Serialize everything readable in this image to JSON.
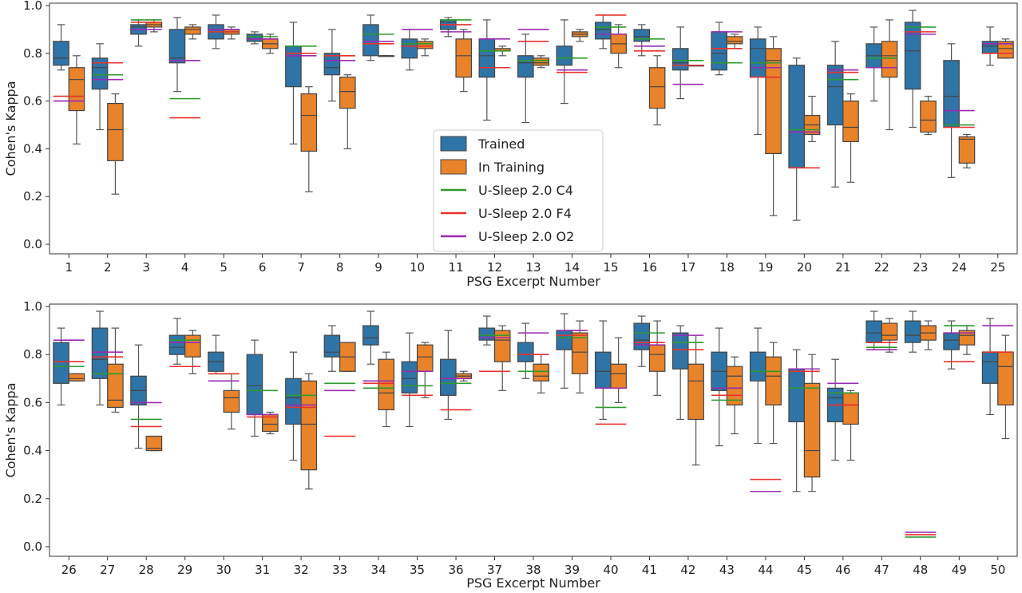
{
  "colors": {
    "trained": "#2f74a6",
    "in_training": "#e8832a",
    "c4": "#2e9a2e",
    "f4": "#e8312f",
    "o2": "#9a2bb0"
  },
  "legend": {
    "placement": "center",
    "trained": "Trained",
    "in_training": "In Training",
    "c4": "U-Sleep 2.0 C4",
    "f4": "U-Sleep 2.0 F4",
    "o2": "U-Sleep 2.0 O2"
  },
  "chart_data": [
    {
      "type": "box",
      "xlabel": "PSG Excerpt Number",
      "ylabel": "Cohen's Kappa",
      "ylim": [
        -0.04,
        1.01
      ],
      "yticks": [
        "0.0",
        "0.2",
        "0.4",
        "0.6",
        "0.8",
        "1.0"
      ],
      "grid": false,
      "categories": [
        "1",
        "2",
        "3",
        "4",
        "5",
        "6",
        "7",
        "8",
        "9",
        "10",
        "11",
        "12",
        "13",
        "14",
        "15",
        "16",
        "17",
        "18",
        "19",
        "20",
        "21",
        "22",
        "23",
        "24",
        "25"
      ],
      "trained": [
        [
          0.73,
          0.75,
          0.78,
          0.85,
          0.92
        ],
        [
          0.48,
          0.65,
          0.74,
          0.78,
          0.84
        ],
        [
          0.83,
          0.88,
          0.91,
          0.92,
          0.94
        ],
        [
          0.64,
          0.76,
          0.78,
          0.9,
          0.95
        ],
        [
          0.82,
          0.86,
          0.9,
          0.92,
          0.96
        ],
        [
          0.84,
          0.85,
          0.87,
          0.88,
          0.89
        ],
        [
          0.42,
          0.66,
          0.8,
          0.83,
          0.93
        ],
        [
          0.6,
          0.71,
          0.74,
          0.8,
          0.9
        ],
        [
          0.77,
          0.79,
          0.85,
          0.92,
          0.96
        ],
        [
          0.73,
          0.78,
          0.83,
          0.86,
          0.9
        ],
        [
          0.87,
          0.9,
          0.93,
          0.94,
          0.95
        ],
        [
          0.52,
          0.7,
          0.79,
          0.86,
          0.94
        ],
        [
          0.51,
          0.7,
          0.76,
          0.79,
          0.88
        ],
        [
          0.59,
          0.75,
          0.78,
          0.83,
          0.94
        ],
        [
          0.82,
          0.86,
          0.9,
          0.93,
          0.96
        ],
        [
          0.79,
          0.85,
          0.87,
          0.9,
          0.92
        ],
        [
          0.61,
          0.73,
          0.76,
          0.82,
          0.91
        ],
        [
          0.71,
          0.73,
          0.8,
          0.89,
          0.93
        ],
        [
          0.46,
          0.7,
          0.82,
          0.86,
          0.91
        ],
        [
          0.1,
          0.32,
          0.48,
          0.75,
          0.78
        ],
        [
          0.24,
          0.5,
          0.66,
          0.75,
          0.85
        ],
        [
          0.6,
          0.74,
          0.79,
          0.84,
          0.91
        ],
        [
          0.49,
          0.65,
          0.81,
          0.93,
          0.98
        ],
        [
          0.28,
          0.49,
          0.62,
          0.77,
          0.84
        ],
        [
          0.75,
          0.8,
          0.83,
          0.85,
          0.91
        ]
      ],
      "in_training": [
        [
          0.42,
          0.56,
          0.69,
          0.74,
          0.79
        ],
        [
          0.21,
          0.35,
          0.48,
          0.59,
          0.63
        ],
        [
          0.89,
          0.91,
          0.92,
          0.93,
          0.94
        ],
        [
          0.86,
          0.88,
          0.9,
          0.91,
          0.92
        ],
        [
          0.86,
          0.88,
          0.89,
          0.9,
          0.91
        ],
        [
          0.8,
          0.82,
          0.84,
          0.86,
          0.88
        ],
        [
          0.22,
          0.39,
          0.54,
          0.63,
          0.66
        ],
        [
          0.4,
          0.57,
          0.64,
          0.7,
          0.71
        ],
        [
          0.79,
          0.79,
          0.79,
          0.79,
          0.79
        ],
        [
          0.79,
          0.82,
          0.83,
          0.85,
          0.86
        ],
        [
          0.64,
          0.7,
          0.79,
          0.86,
          0.9
        ],
        [
          0.79,
          0.81,
          0.81,
          0.82,
          0.83
        ],
        [
          0.74,
          0.75,
          0.76,
          0.78,
          0.79
        ],
        [
          0.85,
          0.87,
          0.88,
          0.89,
          0.9
        ],
        [
          0.74,
          0.8,
          0.84,
          0.88,
          0.92
        ],
        [
          0.5,
          0.57,
          0.66,
          0.74,
          0.79
        ],
        [
          0.75,
          0.75,
          0.75,
          0.75,
          0.75
        ],
        [
          0.82,
          0.84,
          0.85,
          0.87,
          0.88
        ],
        [
          0.12,
          0.38,
          0.77,
          0.82,
          0.87
        ],
        [
          0.43,
          0.46,
          0.5,
          0.54,
          0.62
        ],
        [
          0.26,
          0.43,
          0.49,
          0.6,
          0.63
        ],
        [
          0.48,
          0.7,
          0.79,
          0.85,
          0.94
        ],
        [
          0.46,
          0.47,
          0.52,
          0.6,
          0.62
        ],
        [
          0.32,
          0.34,
          0.44,
          0.45,
          0.46
        ],
        [
          0.78,
          0.78,
          0.82,
          0.85,
          0.86
        ]
      ],
      "c4": [
        0.62,
        0.71,
        0.94,
        0.61,
        0.89,
        0.87,
        0.83,
        0.79,
        0.88,
        0.84,
        0.94,
        0.81,
        0.77,
        0.78,
        0.91,
        0.86,
        0.77,
        0.76,
        0.76,
        0.48,
        0.69,
        0.78,
        0.91,
        0.5,
        0.84
      ],
      "f4": [
        0.62,
        0.76,
        0.93,
        0.53,
        0.89,
        0.86,
        0.8,
        0.79,
        0.84,
        0.83,
        0.92,
        0.74,
        0.85,
        0.72,
        0.96,
        0.81,
        0.75,
        0.82,
        0.7,
        0.32,
        0.72,
        0.74,
        0.89,
        0.49,
        0.8
      ],
      "o2": [
        0.6,
        0.69,
        0.9,
        0.77,
        0.9,
        0.86,
        0.79,
        0.77,
        0.85,
        0.9,
        0.89,
        0.86,
        0.9,
        0.73,
        0.88,
        0.83,
        0.67,
        0.89,
        0.74,
        0.47,
        0.73,
        0.74,
        0.88,
        0.56,
        0.84
      ]
    },
    {
      "type": "box",
      "xlabel": "PSG Excerpt Number",
      "ylabel": "Cohen's Kappa",
      "ylim": [
        -0.04,
        1.01
      ],
      "yticks": [
        "0.0",
        "0.2",
        "0.4",
        "0.6",
        "0.8",
        "1.0"
      ],
      "grid": false,
      "categories": [
        "26",
        "27",
        "28",
        "29",
        "30",
        "31",
        "32",
        "33",
        "34",
        "35",
        "36",
        "37",
        "38",
        "39",
        "40",
        "41",
        "42",
        "43",
        "44",
        "45",
        "46",
        "47",
        "48",
        "49",
        "50"
      ],
      "trained": [
        [
          0.59,
          0.68,
          0.75,
          0.85,
          0.91
        ],
        [
          0.59,
          0.7,
          0.78,
          0.91,
          0.98
        ],
        [
          0.41,
          0.59,
          0.65,
          0.71,
          0.84
        ],
        [
          0.76,
          0.8,
          0.83,
          0.88,
          0.95
        ],
        [
          0.72,
          0.73,
          0.77,
          0.81,
          0.88
        ],
        [
          0.46,
          0.55,
          0.67,
          0.8,
          0.86
        ],
        [
          0.36,
          0.51,
          0.62,
          0.7,
          0.81
        ],
        [
          0.73,
          0.79,
          0.81,
          0.88,
          0.92
        ],
        [
          0.76,
          0.84,
          0.87,
          0.92,
          0.98
        ],
        [
          0.5,
          0.64,
          0.7,
          0.77,
          0.89
        ],
        [
          0.53,
          0.63,
          0.7,
          0.78,
          0.9
        ],
        [
          0.84,
          0.86,
          0.88,
          0.91,
          0.96
        ],
        [
          0.7,
          0.77,
          0.8,
          0.85,
          0.93
        ],
        [
          0.66,
          0.82,
          0.87,
          0.9,
          0.97
        ],
        [
          0.53,
          0.66,
          0.73,
          0.81,
          0.94
        ],
        [
          0.75,
          0.82,
          0.86,
          0.93,
          0.96
        ],
        [
          0.53,
          0.74,
          0.82,
          0.89,
          0.92
        ],
        [
          0.42,
          0.65,
          0.73,
          0.81,
          0.91
        ],
        [
          0.43,
          0.69,
          0.73,
          0.81,
          0.91
        ],
        [
          0.23,
          0.52,
          0.66,
          0.74,
          0.82
        ],
        [
          0.36,
          0.52,
          0.62,
          0.66,
          0.78
        ],
        [
          0.82,
          0.85,
          0.89,
          0.94,
          0.98
        ],
        [
          0.81,
          0.85,
          0.88,
          0.94,
          0.98
        ],
        [
          0.74,
          0.82,
          0.86,
          0.89,
          0.94
        ],
        [
          0.55,
          0.68,
          0.77,
          0.81,
          0.95
        ]
      ],
      "in_training": [
        [
          0.69,
          0.69,
          0.7,
          0.72,
          0.72
        ],
        [
          0.56,
          0.58,
          0.61,
          0.76,
          0.91
        ],
        [
          0.4,
          0.4,
          0.41,
          0.46,
          0.46
        ],
        [
          0.72,
          0.79,
          0.85,
          0.88,
          0.9
        ],
        [
          0.49,
          0.56,
          0.62,
          0.65,
          0.72
        ],
        [
          0.47,
          0.48,
          0.51,
          0.55,
          0.56
        ],
        [
          0.24,
          0.32,
          0.51,
          0.69,
          0.72
        ],
        [
          0.73,
          0.73,
          0.79,
          0.85,
          0.85
        ],
        [
          0.5,
          0.57,
          0.64,
          0.78,
          0.81
        ],
        [
          0.62,
          0.73,
          0.79,
          0.84,
          0.85
        ],
        [
          0.69,
          0.7,
          0.71,
          0.72,
          0.73
        ],
        [
          0.65,
          0.77,
          0.86,
          0.9,
          0.92
        ],
        [
          0.64,
          0.69,
          0.71,
          0.76,
          0.8
        ],
        [
          0.64,
          0.72,
          0.81,
          0.89,
          0.94
        ],
        [
          0.6,
          0.66,
          0.72,
          0.76,
          0.87
        ],
        [
          0.63,
          0.73,
          0.8,
          0.84,
          0.94
        ],
        [
          0.34,
          0.53,
          0.69,
          0.76,
          0.88
        ],
        [
          0.47,
          0.59,
          0.71,
          0.75,
          0.79
        ],
        [
          0.43,
          0.59,
          0.71,
          0.79,
          0.85
        ],
        [
          0.23,
          0.29,
          0.4,
          0.68,
          0.8
        ],
        [
          0.36,
          0.51,
          0.59,
          0.64,
          0.65
        ],
        [
          0.81,
          0.86,
          0.88,
          0.93,
          0.95
        ],
        [
          0.82,
          0.86,
          0.89,
          0.92,
          0.94
        ],
        [
          0.8,
          0.84,
          0.88,
          0.9,
          0.92
        ],
        [
          0.45,
          0.59,
          0.75,
          0.81,
          0.88
        ]
      ],
      "c4": [
        0.75,
        0.72,
        0.53,
        0.86,
        0.72,
        0.65,
        0.63,
        0.68,
        0.66,
        0.67,
        0.68,
        0.88,
        0.73,
        0.87,
        0.58,
        0.89,
        0.85,
        0.61,
        0.73,
        0.66,
        0.64,
        0.83,
        0.04,
        0.92,
        0.81
      ],
      "f4": [
        0.77,
        0.79,
        0.5,
        0.75,
        0.72,
        0.54,
        0.58,
        0.46,
        0.68,
        0.63,
        0.57,
        0.73,
        0.8,
        0.88,
        0.51,
        0.85,
        0.82,
        0.63,
        0.28,
        0.73,
        0.59,
        0.85,
        0.05,
        0.77,
        0.81
      ],
      "o2": [
        0.86,
        0.81,
        0.6,
        0.85,
        0.69,
        0.55,
        0.59,
        0.65,
        0.69,
        0.73,
        0.7,
        0.87,
        0.89,
        0.9,
        0.66,
        0.84,
        0.88,
        0.66,
        0.23,
        0.74,
        0.68,
        0.82,
        0.06,
        0.89,
        0.92
      ]
    }
  ]
}
